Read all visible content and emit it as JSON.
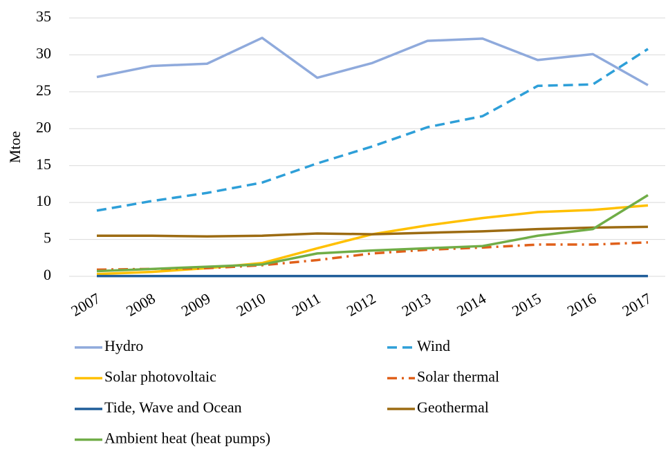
{
  "chart_data": {
    "type": "line",
    "ylabel": "Mtoe",
    "categories": [
      "2007",
      "2008",
      "2009",
      "2010",
      "2011",
      "2012",
      "2013",
      "2014",
      "2015",
      "2016",
      "2017"
    ],
    "ylim": [
      0,
      35
    ],
    "yticks": [
      0,
      5,
      10,
      15,
      20,
      25,
      30,
      35
    ],
    "grid": true,
    "legend": "bottom",
    "series": [
      {
        "name": "Hydro",
        "color": "#8faadc",
        "dash": "solid",
        "values": [
          27.0,
          28.5,
          28.8,
          32.3,
          26.9,
          28.9,
          31.9,
          32.2,
          29.3,
          30.1,
          25.9
        ]
      },
      {
        "name": "Wind",
        "color": "#2e9fd8",
        "dash": "dash",
        "values": [
          8.9,
          10.2,
          11.3,
          12.7,
          15.3,
          17.6,
          20.2,
          21.7,
          25.8,
          26.0,
          30.8
        ]
      },
      {
        "name": "Solar photovoltaic",
        "color": "#ffc000",
        "dash": "solid",
        "values": [
          0.3,
          0.6,
          1.1,
          1.8,
          3.8,
          5.7,
          6.9,
          7.9,
          8.7,
          9.0,
          9.6
        ]
      },
      {
        "name": "Solar thermal",
        "color": "#e0601a",
        "dash": "dashdot",
        "values": [
          0.9,
          1.0,
          1.1,
          1.5,
          2.2,
          3.1,
          3.6,
          3.9,
          4.3,
          4.3,
          4.6
        ]
      },
      {
        "name": "Tide, Wave and Ocean",
        "color": "#1f5d99",
        "dash": "solid",
        "values": [
          0.04,
          0.04,
          0.04,
          0.04,
          0.04,
          0.04,
          0.04,
          0.04,
          0.04,
          0.04,
          0.04
        ]
      },
      {
        "name": "Geothermal",
        "color": "#9c6b12",
        "dash": "solid",
        "values": [
          5.5,
          5.5,
          5.4,
          5.5,
          5.8,
          5.7,
          5.9,
          6.1,
          6.4,
          6.6,
          6.7
        ]
      },
      {
        "name": "Ambient heat (heat pumps)",
        "color": "#70ad47",
        "dash": "solid",
        "values": [
          0.7,
          1.0,
          1.3,
          1.6,
          3.1,
          3.5,
          3.8,
          4.1,
          5.5,
          6.4,
          11.0
        ]
      }
    ]
  }
}
